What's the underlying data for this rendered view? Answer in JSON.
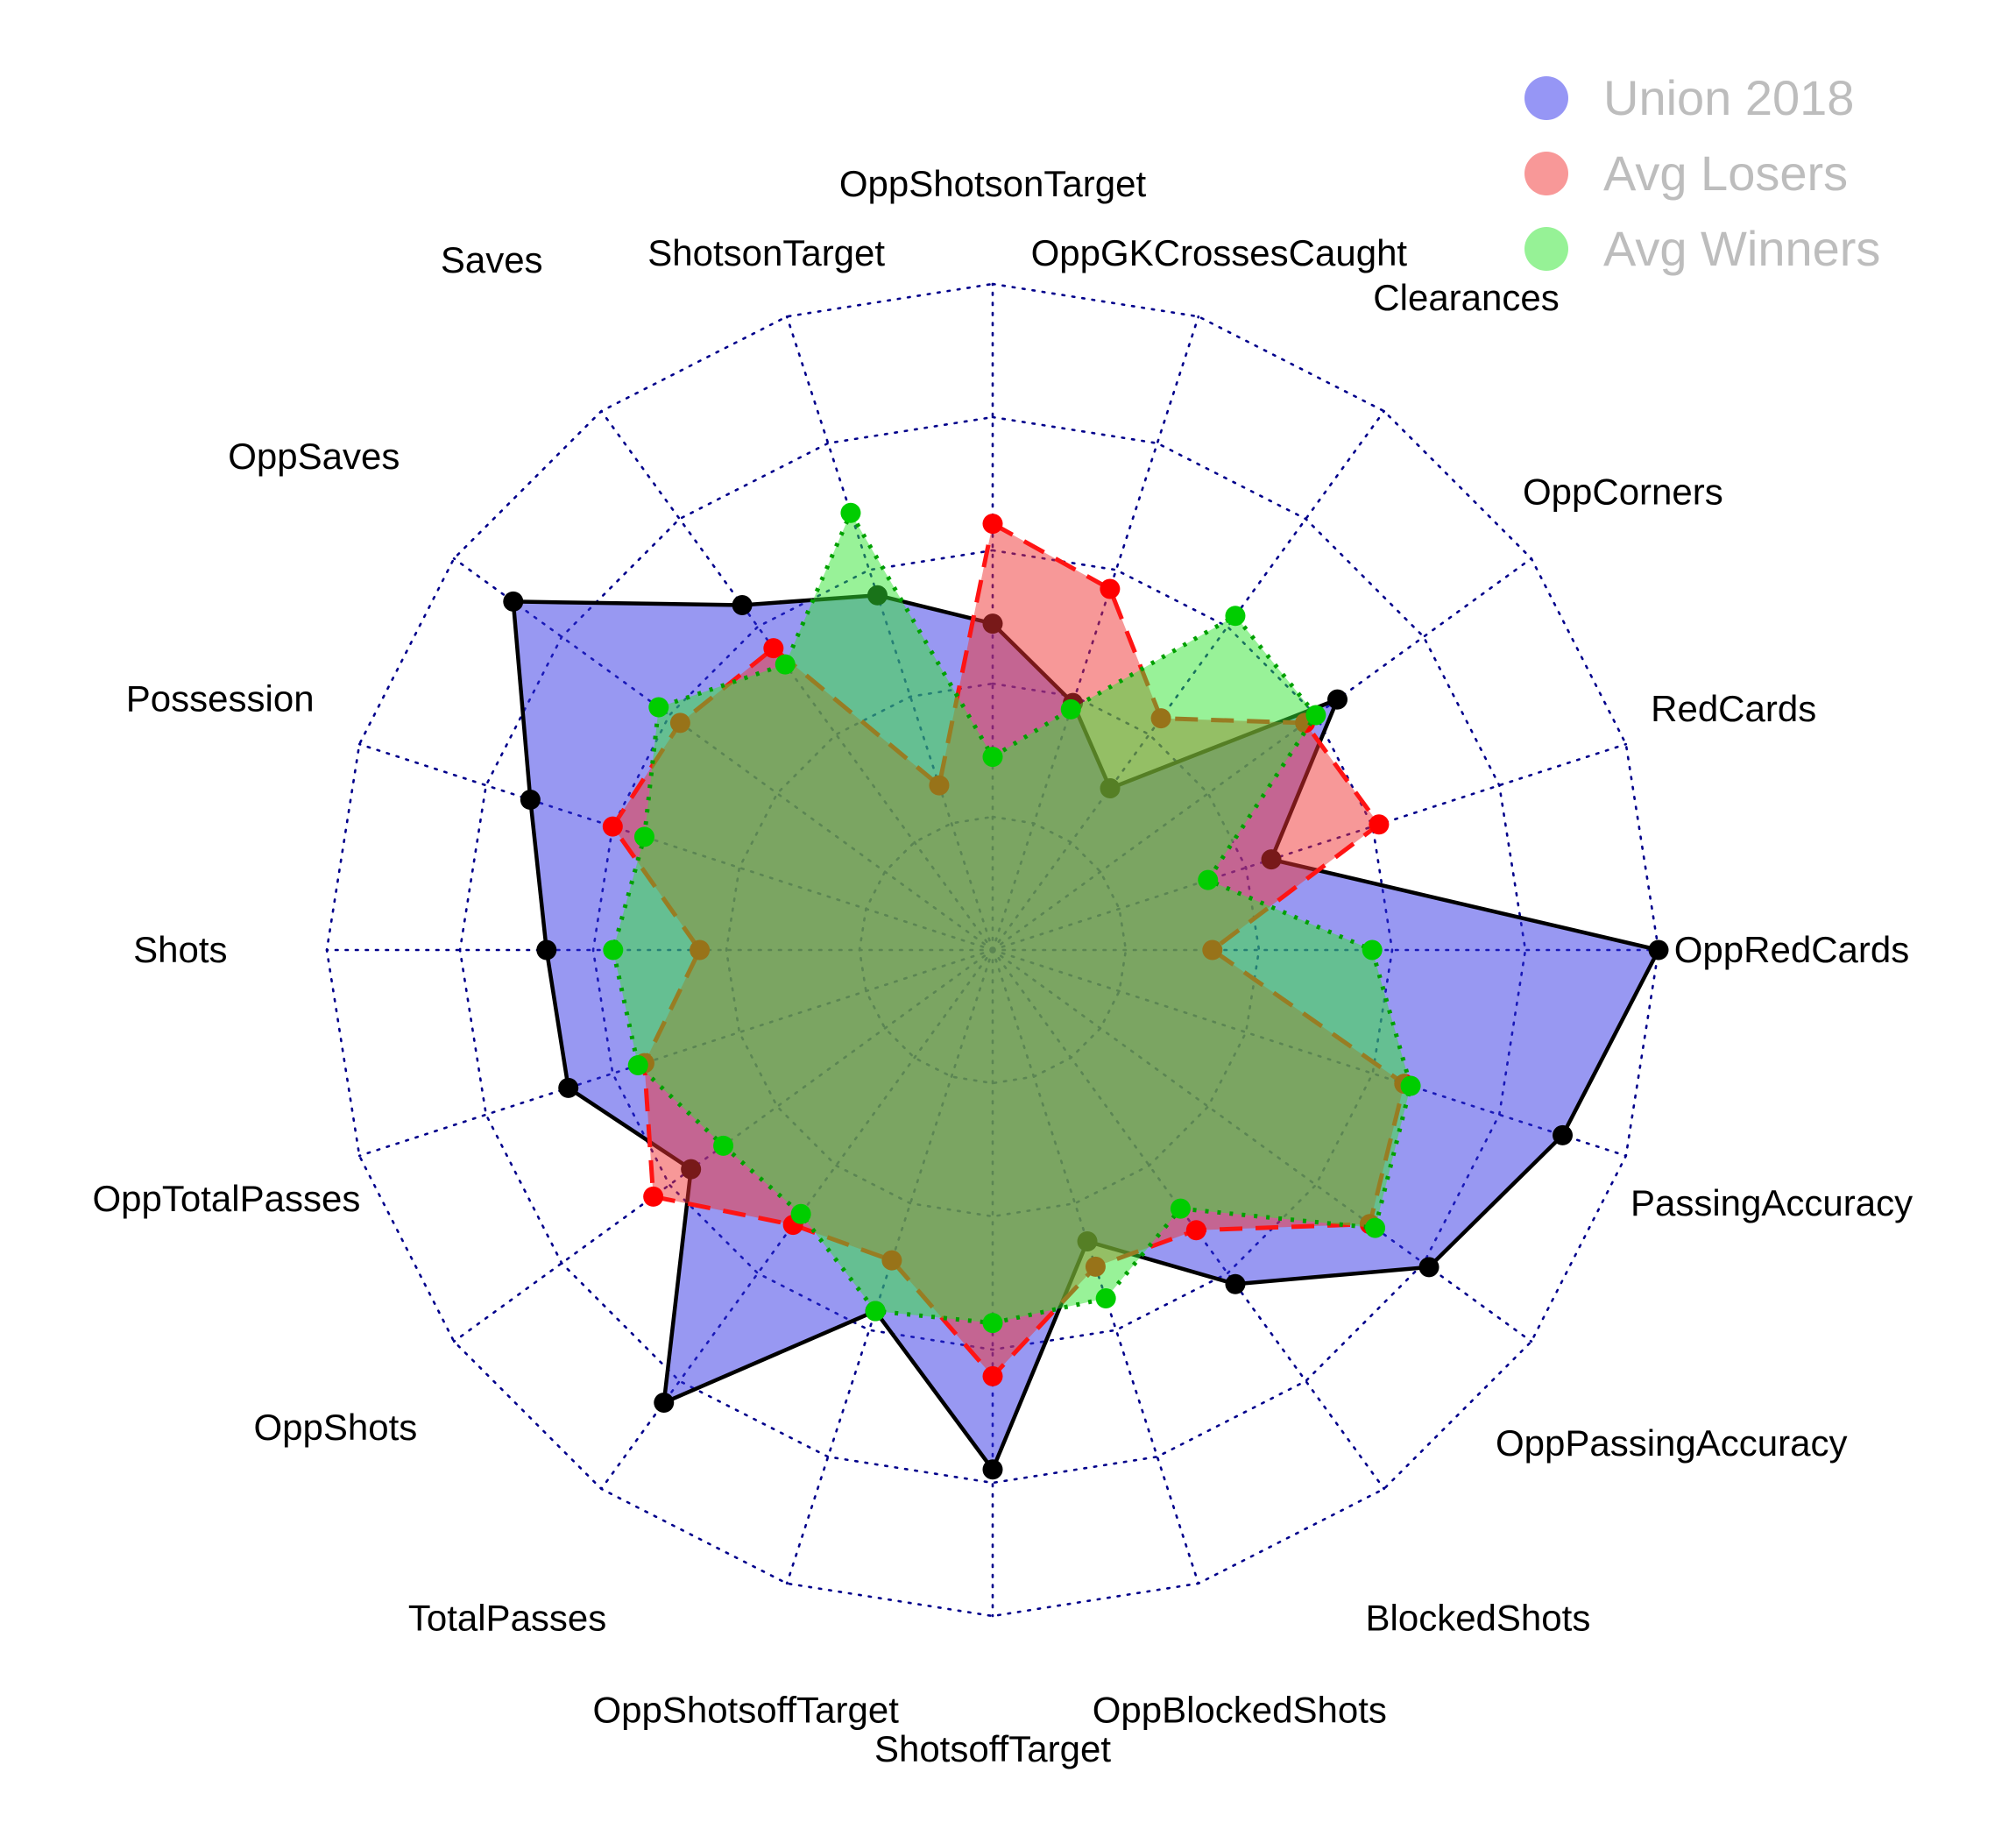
{
  "chart_data": {
    "type": "radar",
    "title": "",
    "categories": [
      "OppShotsonTarget",
      "OppGKCrossesCaught",
      "Clearances",
      "OppCorners",
      "RedCards",
      "OppRedCards",
      "PassingAccuracy",
      "OppPassingAccuracy",
      "BlockedShots",
      "OppBlockedShots",
      "ShotsoffTarget",
      "OppShotsoffTarget",
      "TotalPasses",
      "OppShots",
      "OppTotalPasses",
      "Shots",
      "Possession",
      "OppSaves",
      "Saves",
      "ShotsonTarget"
    ],
    "series": [
      {
        "name": "Union 2018",
        "values": [
          0.49,
          0.39,
          0.3,
          0.64,
          0.44,
          1.0,
          0.9,
          0.81,
          0.62,
          0.46,
          0.78,
          0.57,
          0.84,
          0.56,
          0.67,
          0.67,
          0.73,
          0.89,
          0.64,
          0.56
        ],
        "fill": "rgba(50,50,230,0.5)",
        "line_color": "#000000",
        "point_color": "#000000",
        "line_style": "solid",
        "legend_swatch": "#9696F5"
      },
      {
        "name": "Avg Losers",
        "values": [
          0.64,
          0.57,
          0.43,
          0.58,
          0.61,
          0.33,
          0.65,
          0.7,
          0.52,
          0.5,
          0.64,
          0.49,
          0.51,
          0.63,
          0.55,
          0.44,
          0.6,
          0.58,
          0.56,
          0.26
        ],
        "fill": "rgba(240,50,50,0.5)",
        "line_color": "#FF1414",
        "point_color": "#FF0000",
        "line_style": "dashed",
        "legend_swatch": "#F89898"
      },
      {
        "name": "Avg Winners",
        "values": [
          0.29,
          0.38,
          0.62,
          0.6,
          0.34,
          0.57,
          0.66,
          0.71,
          0.48,
          0.55,
          0.56,
          0.57,
          0.49,
          0.5,
          0.56,
          0.57,
          0.55,
          0.62,
          0.53,
          0.69
        ],
        "fill": "rgba(50,230,50,0.5)",
        "line_color": "#00A000",
        "point_color": "#00CD00",
        "line_style": "dotted",
        "legend_swatch": "#96F296"
      }
    ],
    "scale": {
      "min": 0,
      "max": 1,
      "rings": 5
    },
    "grid": {
      "color": "#00008B",
      "style": "dotted",
      "spokes": 20
    },
    "legend_position": "top-right"
  },
  "legend": {
    "items": [
      {
        "label": "Union 2018"
      },
      {
        "label": "Avg Losers"
      },
      {
        "label": "Avg Winners"
      }
    ],
    "text_color": "#BDBDBD"
  }
}
